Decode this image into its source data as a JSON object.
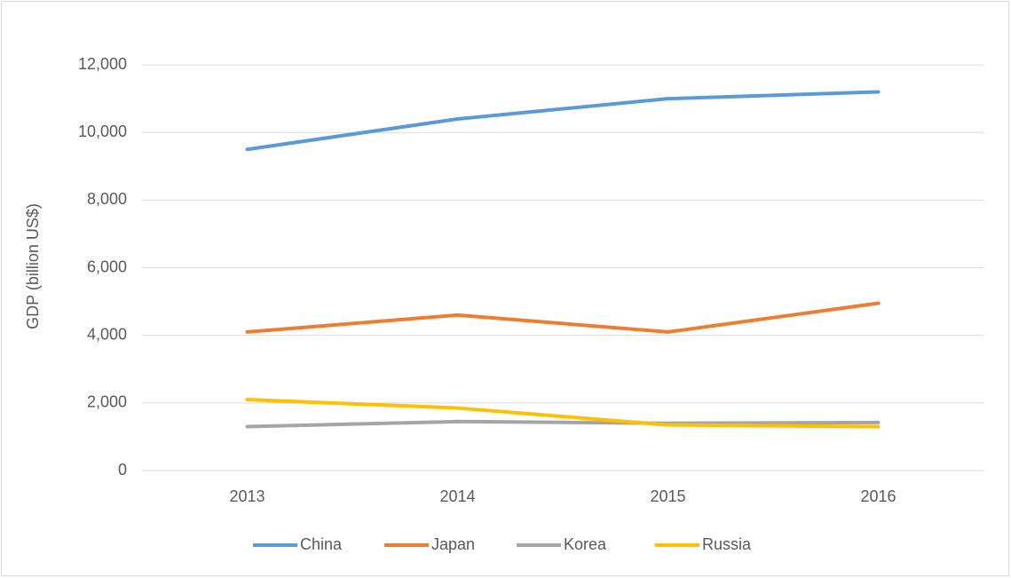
{
  "chart_data": {
    "type": "line",
    "y_label": "GDP (billion US$)",
    "categories": [
      "2013",
      "2014",
      "2015",
      "2016"
    ],
    "series": [
      {
        "name": "China",
        "color": "#5b9bd5",
        "values": [
          9500,
          10400,
          11000,
          11200
        ]
      },
      {
        "name": "Japan",
        "color": "#ed7d31",
        "values": [
          4100,
          4600,
          4100,
          4950
        ]
      },
      {
        "name": "Korea",
        "color": "#a5a5a5",
        "values": [
          1300,
          1450,
          1400,
          1420
        ]
      },
      {
        "name": "Russia",
        "color": "#ffc000",
        "values": [
          2100,
          1850,
          1350,
          1300
        ]
      }
    ],
    "ylim": [
      0,
      13000
    ],
    "yticks": [
      0,
      {
        "value": 2000,
        "label": "2,000"
      },
      {
        "value": 4000,
        "label": "4,000"
      },
      {
        "value": 6000,
        "label": "6,000"
      },
      {
        "value": 8000,
        "label": "8,000"
      },
      {
        "value": 10000,
        "label": "10,000"
      },
      {
        "value": 12000,
        "label": "12,000"
      }
    ],
    "grid": true,
    "legend": "bottom"
  }
}
